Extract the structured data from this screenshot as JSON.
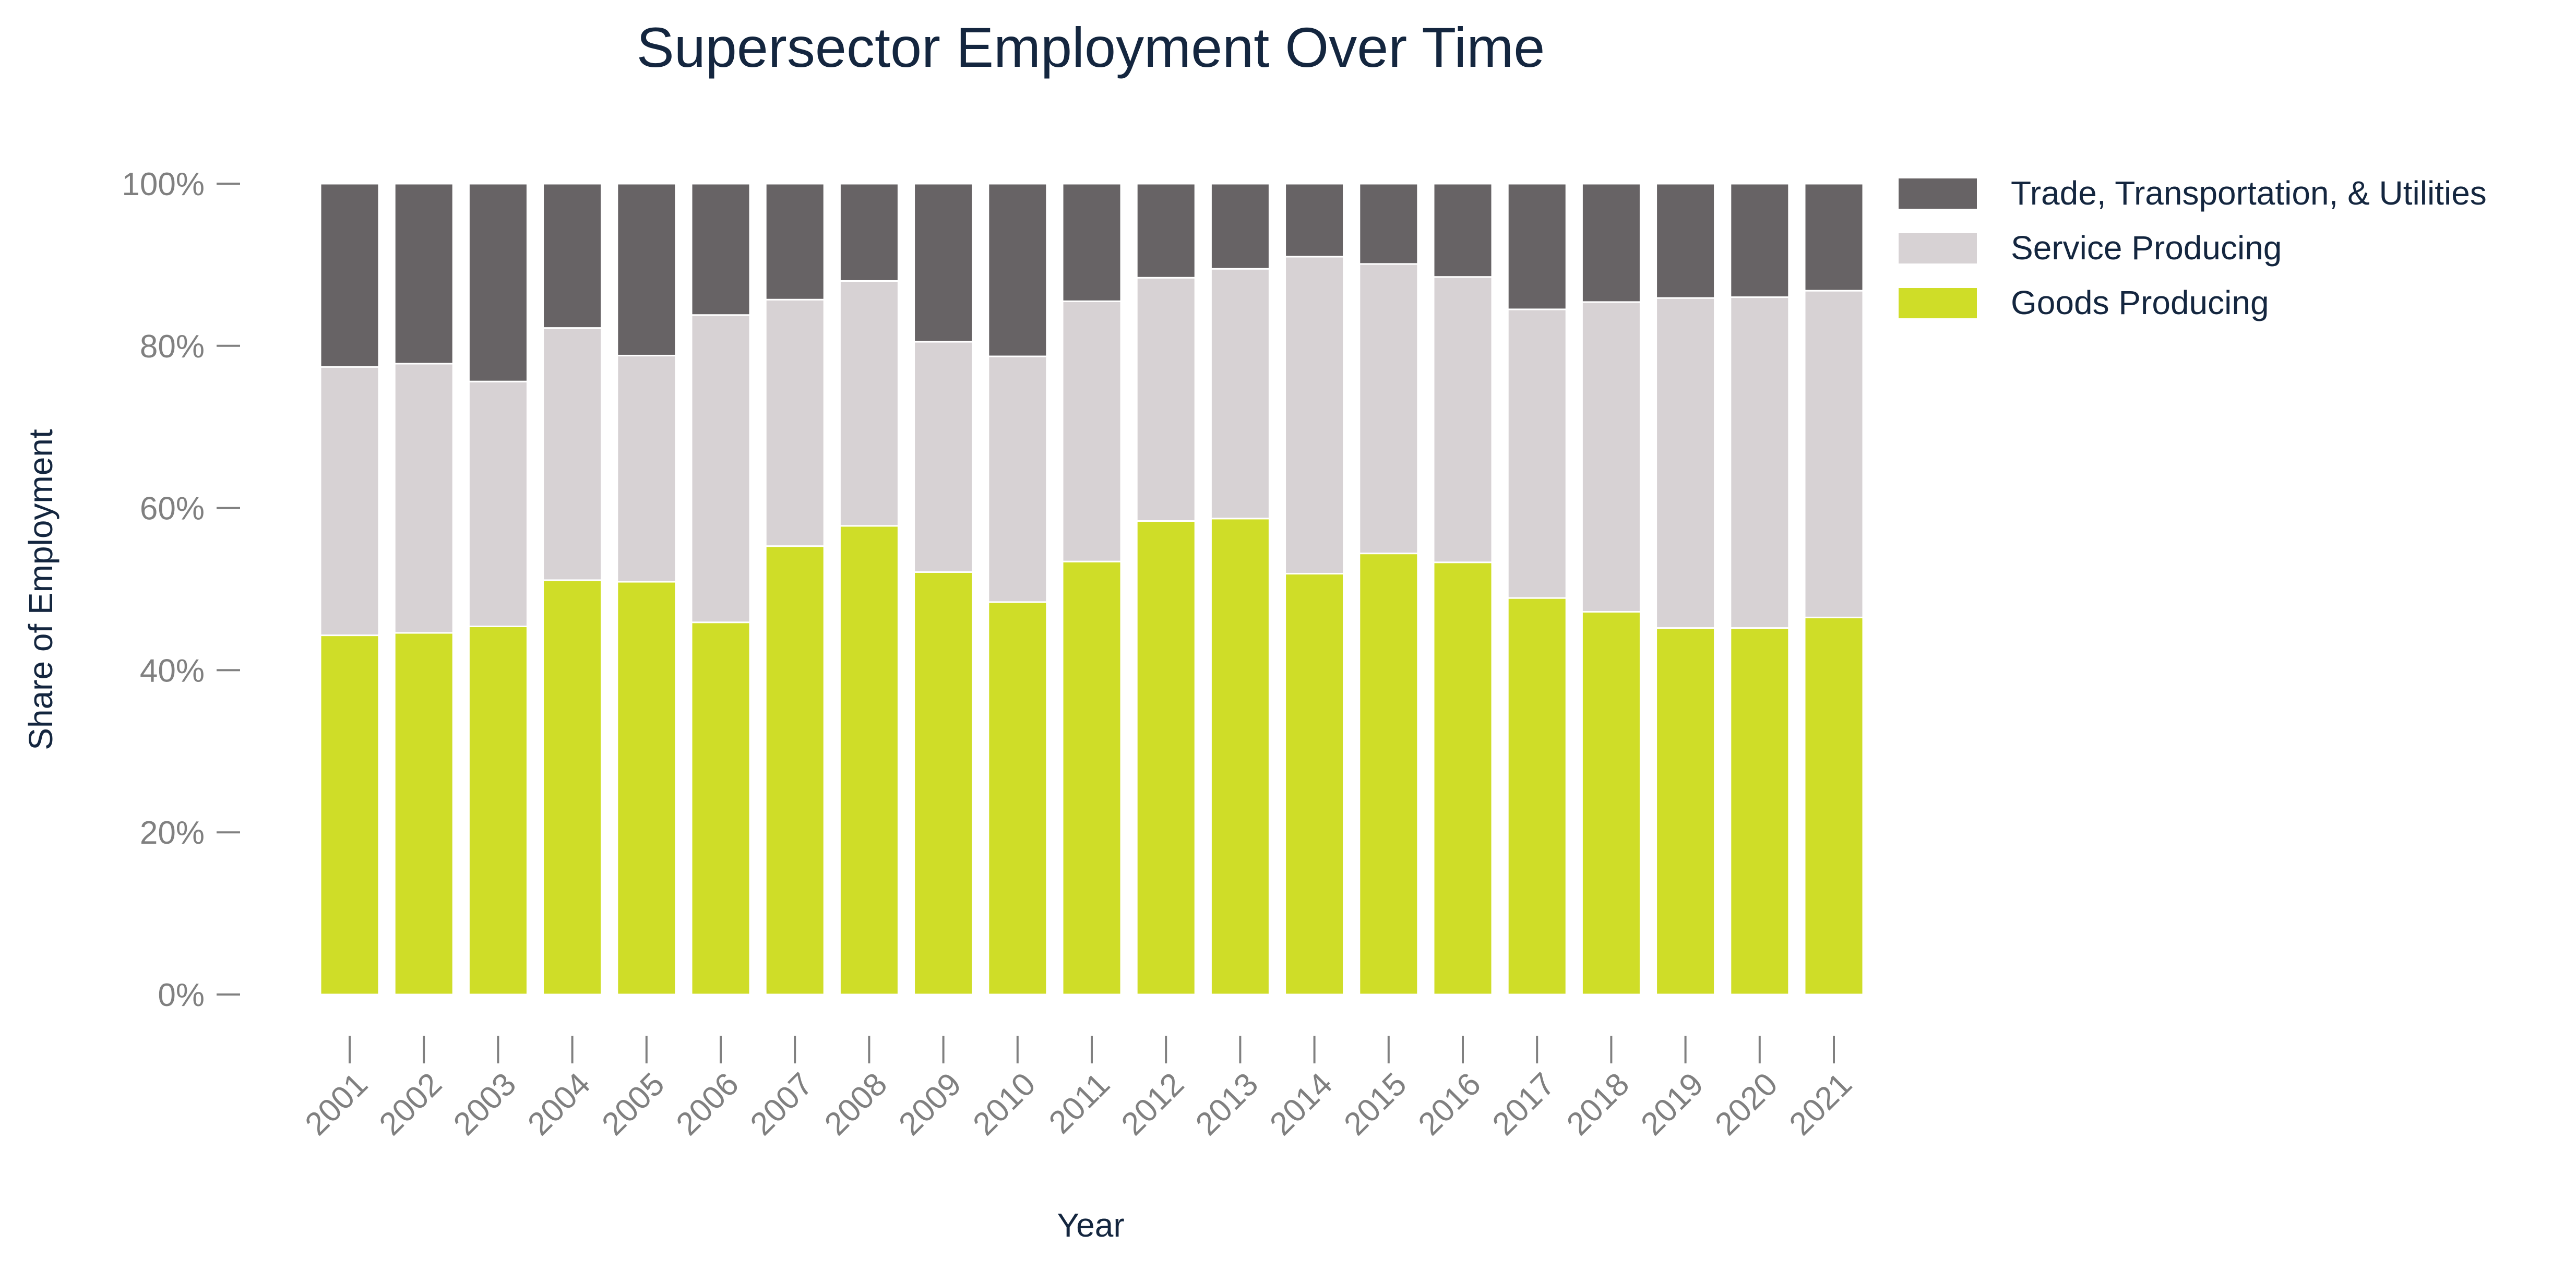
{
  "chart_data": {
    "type": "bar",
    "stacked": true,
    "normalized": true,
    "title": "Supersector Employment Over Time",
    "xlabel": "Year",
    "ylabel": "Share of Employment",
    "ylim": [
      0,
      100
    ],
    "yticks": [
      "0%",
      "20%",
      "40%",
      "60%",
      "80%",
      "100%"
    ],
    "grid": false,
    "legend_position": "top-right",
    "categories": [
      "2001",
      "2002",
      "2003",
      "2004",
      "2005",
      "2006",
      "2007",
      "2008",
      "2009",
      "2010",
      "2011",
      "2012",
      "2013",
      "2014",
      "2015",
      "2016",
      "2017",
      "2018",
      "2019",
      "2020",
      "2021"
    ],
    "series": [
      {
        "name": "Goods Producing",
        "color": "#cfdd28",
        "values": [
          44.3,
          44.6,
          45.4,
          51.1,
          50.9,
          45.9,
          55.3,
          57.8,
          52.1,
          48.4,
          53.4,
          58.4,
          58.7,
          51.9,
          54.4,
          53.3,
          48.9,
          47.2,
          45.2,
          45.2,
          46.5
        ]
      },
      {
        "name": "Service Producing",
        "color": "#d7d2d4",
        "values": [
          33.1,
          33.2,
          30.2,
          31.1,
          27.9,
          37.9,
          30.4,
          30.2,
          28.4,
          30.3,
          32.1,
          30.0,
          30.8,
          39.1,
          35.7,
          35.2,
          35.6,
          38.2,
          40.7,
          40.8,
          40.3
        ]
      },
      {
        "name": "Trade, Transportation, & Utilities",
        "color": "#676365",
        "values": [
          22.6,
          22.2,
          24.4,
          17.8,
          21.2,
          16.2,
          14.3,
          12.0,
          19.5,
          21.3,
          14.5,
          11.6,
          10.5,
          9.0,
          9.9,
          11.5,
          15.5,
          14.6,
          14.1,
          14.0,
          13.2
        ]
      }
    ]
  }
}
